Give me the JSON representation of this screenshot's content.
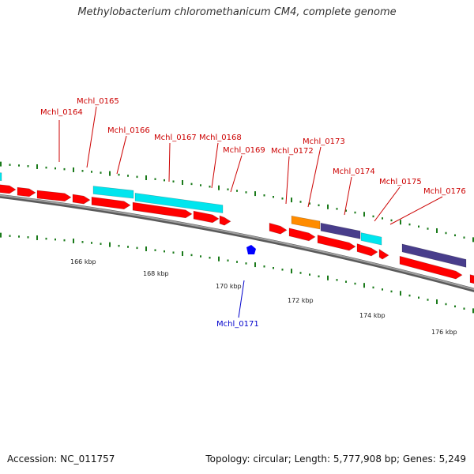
{
  "title": "Methylobacterium chloromethanicum CM4, complete genome",
  "footer": {
    "accession": "Accession: NC_011757",
    "summary": "Topology: circular; Length: 5,777,908 bp; Genes: 5,249"
  },
  "colors": {
    "backbone": "#8a8a8a",
    "cds": "#ff0000",
    "cyan_feature": "#00e5ee",
    "orange_feature": "#ff8c00",
    "purple_feature": "#483d8b",
    "label_red": "#cc0000",
    "label_blue": "#0000cc",
    "tick": "#1a7a1a",
    "blue_marker": "#0000ff"
  },
  "ruler": [
    {
      "label": "166 kbp"
    },
    {
      "label": "168 kbp"
    },
    {
      "label": "170 kbp"
    },
    {
      "label": "172 kbp"
    },
    {
      "label": "174 kbp"
    },
    {
      "label": "176 kbp"
    }
  ],
  "gene_labels": [
    {
      "name": "Mchl_0164",
      "color": "red"
    },
    {
      "name": "Mchl_0165",
      "color": "red"
    },
    {
      "name": "Mchl_0166",
      "color": "red"
    },
    {
      "name": "Mchl_0167",
      "color": "red"
    },
    {
      "name": "Mchl_0168",
      "color": "red"
    },
    {
      "name": "Mchl_0169",
      "color": "red"
    },
    {
      "name": "Mchl_0171",
      "color": "blue"
    },
    {
      "name": "Mchl_0172",
      "color": "red"
    },
    {
      "name": "Mchl_0173",
      "color": "red"
    },
    {
      "name": "Mchl_0174",
      "color": "red"
    },
    {
      "name": "Mchl_0175",
      "color": "red"
    },
    {
      "name": "Mchl_0176",
      "color": "red"
    }
  ]
}
